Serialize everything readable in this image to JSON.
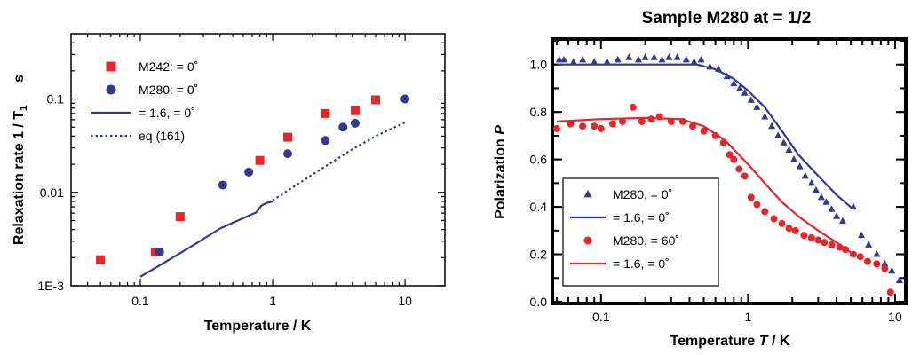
{
  "chart_data": [
    {
      "type": "scatter",
      "title": "",
      "xlabel": "Temperature / K",
      "ylabel": "Relaxation rate 1 / T₁   s",
      "ylabel_main": "Relaxation rate 1 / T",
      "ylabel_sub": "1",
      "ylabel_unit": "s",
      "x_scale": "log",
      "y_scale": "log",
      "xlim": [
        0.03,
        20
      ],
      "ylim": [
        0.001,
        0.5
      ],
      "x_ticks": [
        {
          "value": 0.1,
          "label": "0.1"
        },
        {
          "value": 1,
          "label": "1"
        },
        {
          "value": 10,
          "label": "10"
        }
      ],
      "y_ticks": [
        {
          "value": 0.001,
          "label": "1E-3"
        },
        {
          "value": 0.01,
          "label": "0.01"
        },
        {
          "value": 0.1,
          "label": "0.1"
        }
      ],
      "legend_position": "top-left",
      "series": [
        {
          "name": "M242:    = 0˚",
          "kind": "markers",
          "marker": "square",
          "color": "#e8262a",
          "points": [
            [
              0.05,
              0.0019
            ],
            [
              0.13,
              0.0023
            ],
            [
              0.2,
              0.0055
            ],
            [
              0.8,
              0.022
            ],
            [
              1.3,
              0.039
            ],
            [
              2.5,
              0.07
            ],
            [
              4.2,
              0.075
            ],
            [
              6,
              0.098
            ]
          ]
        },
        {
          "name": "M280:    = 0˚",
          "kind": "markers",
          "marker": "circle",
          "color": "#2e3a94",
          "points": [
            [
              0.14,
              0.0023
            ],
            [
              0.42,
              0.012
            ],
            [
              0.66,
              0.0165
            ],
            [
              1.3,
              0.026
            ],
            [
              2.5,
              0.036
            ],
            [
              3.4,
              0.05
            ],
            [
              4.2,
              0.055
            ],
            [
              10,
              0.1
            ]
          ]
        },
        {
          "name": "    = 1.6,    = 0˚",
          "kind": "line",
          "style": "solid",
          "color": "#2e3a94",
          "points": [
            [
              0.1,
              0.00125
            ],
            [
              0.15,
              0.00175
            ],
            [
              0.25,
              0.0027
            ],
            [
              0.4,
              0.0041
            ],
            [
              0.6,
              0.0053
            ],
            [
              0.75,
              0.0061
            ],
            [
              0.82,
              0.0072
            ],
            [
              0.9,
              0.0077
            ],
            [
              1,
              0.008
            ]
          ]
        },
        {
          "name": "eq (161)",
          "kind": "line",
          "style": "dotted",
          "color": "#2e3a94",
          "points": [
            [
              1,
              0.0082
            ],
            [
              2,
              0.0155
            ],
            [
              4,
              0.029
            ],
            [
              6,
              0.04
            ],
            [
              10,
              0.056
            ]
          ]
        }
      ]
    },
    {
      "type": "scatter",
      "title": "Sample M280 at    = 1/2",
      "xlabel": "Temperature T / K",
      "xlabel_plain": "Temperature ",
      "xlabel_var": "T",
      "xlabel_unit": " / K",
      "ylabel": "Polarization P",
      "ylabel_plain": "Polarization ",
      "ylabel_var": "P",
      "x_scale": "log",
      "y_scale": "linear",
      "xlim": [
        0.048,
        11.5
      ],
      "ylim": [
        0,
        1.1
      ],
      "x_ticks": [
        {
          "value": 0.1,
          "label": "0.1"
        },
        {
          "value": 1,
          "label": "1"
        },
        {
          "value": 10,
          "label": "10"
        }
      ],
      "y_ticks": [
        {
          "value": 0,
          "label": "0.0"
        },
        {
          "value": 0.2,
          "label": "0.2"
        },
        {
          "value": 0.4,
          "label": "0.4"
        },
        {
          "value": 0.6,
          "label": "0.6"
        },
        {
          "value": 0.8,
          "label": "0.8"
        },
        {
          "value": 1.0,
          "label": "1.0"
        }
      ],
      "legend_position": "bottom-left",
      "series": [
        {
          "name": "M280,    = 0˚",
          "kind": "markers",
          "marker": "triangle",
          "color": "#2e3a94",
          "points": [
            [
              0.052,
              1.02
            ],
            [
              0.056,
              1.02
            ],
            [
              0.065,
              1.01
            ],
            [
              0.075,
              1.02
            ],
            [
              0.09,
              1.01
            ],
            [
              0.11,
              1.01
            ],
            [
              0.13,
              1.02
            ],
            [
              0.155,
              1.03
            ],
            [
              0.18,
              1.02
            ],
            [
              0.2,
              1.03
            ],
            [
              0.23,
              1.03
            ],
            [
              0.26,
              1.02
            ],
            [
              0.29,
              1.03
            ],
            [
              0.33,
              1.03
            ],
            [
              0.38,
              1.02
            ],
            [
              0.43,
              1.01
            ],
            [
              0.48,
              1.02
            ],
            [
              0.55,
              0.99
            ],
            [
              0.63,
              0.98
            ],
            [
              0.72,
              0.95
            ],
            [
              0.8,
              0.92
            ],
            [
              0.88,
              0.9
            ],
            [
              0.95,
              0.88
            ],
            [
              1.05,
              0.85
            ],
            [
              1.15,
              0.82
            ],
            [
              1.3,
              0.78
            ],
            [
              1.45,
              0.74
            ],
            [
              1.6,
              0.7
            ],
            [
              1.75,
              0.67
            ],
            [
              1.9,
              0.64
            ],
            [
              2.05,
              0.6
            ],
            [
              2.25,
              0.57
            ],
            [
              2.45,
              0.53
            ],
            [
              2.7,
              0.5
            ],
            [
              2.9,
              0.47
            ],
            [
              3.15,
              0.44
            ],
            [
              3.4,
              0.42
            ],
            [
              3.7,
              0.39
            ],
            [
              4.0,
              0.36
            ],
            [
              4.4,
              0.34
            ],
            [
              5.2,
              0.4
            ],
            [
              5.9,
              0.28
            ],
            [
              6.6,
              0.24
            ],
            [
              7.5,
              0.2
            ],
            [
              8.5,
              0.16
            ],
            [
              9.5,
              0.13
            ],
            [
              10.7,
              0.09
            ]
          ]
        },
        {
          "name": "    = 1.6,    = 0˚",
          "kind": "line",
          "style": "solid",
          "color": "#2e3a94",
          "points": [
            [
              0.05,
              1.0
            ],
            [
              0.2,
              1.0
            ],
            [
              0.45,
              1.0
            ],
            [
              0.6,
              0.98
            ],
            [
              0.8,
              0.94
            ],
            [
              1.0,
              0.89
            ],
            [
              1.3,
              0.82
            ],
            [
              1.7,
              0.72
            ],
            [
              2.2,
              0.62
            ],
            [
              3.0,
              0.53
            ],
            [
              4.0,
              0.45
            ],
            [
              5.2,
              0.39
            ]
          ]
        },
        {
          "name": "M280,    = 60˚",
          "kind": "markers",
          "marker": "circle",
          "color": "#e8262a",
          "points": [
            [
              0.05,
              0.73
            ],
            [
              0.062,
              0.75
            ],
            [
              0.075,
              0.74
            ],
            [
              0.09,
              0.74
            ],
            [
              0.1,
              0.73
            ],
            [
              0.12,
              0.75
            ],
            [
              0.14,
              0.76
            ],
            [
              0.165,
              0.82
            ],
            [
              0.19,
              0.76
            ],
            [
              0.22,
              0.77
            ],
            [
              0.25,
              0.78
            ],
            [
              0.3,
              0.76
            ],
            [
              0.36,
              0.76
            ],
            [
              0.42,
              0.74
            ],
            [
              0.5,
              0.72
            ],
            [
              0.6,
              0.7
            ],
            [
              0.68,
              0.67
            ],
            [
              0.75,
              0.62
            ],
            [
              0.8,
              0.6
            ],
            [
              0.87,
              0.56
            ],
            [
              0.95,
              0.53
            ],
            [
              1.05,
              0.44
            ],
            [
              1.15,
              0.41
            ],
            [
              1.3,
              0.38
            ],
            [
              1.5,
              0.35
            ],
            [
              1.7,
              0.33
            ],
            [
              1.9,
              0.31
            ],
            [
              2.1,
              0.3
            ],
            [
              2.4,
              0.28
            ],
            [
              2.7,
              0.27
            ],
            [
              3.0,
              0.26
            ],
            [
              3.3,
              0.25
            ],
            [
              3.7,
              0.24
            ],
            [
              4.2,
              0.23
            ],
            [
              4.6,
              0.22
            ],
            [
              5.2,
              0.2
            ],
            [
              5.8,
              0.19
            ],
            [
              6.5,
              0.17
            ],
            [
              7.5,
              0.16
            ],
            [
              8.5,
              0.14
            ],
            [
              9.3,
              0.04
            ]
          ]
        },
        {
          "name": "    = 1.6,    = 0˚",
          "kind": "line",
          "style": "solid",
          "color": "#e8262a",
          "points": [
            [
              0.05,
              0.76
            ],
            [
              0.1,
              0.77
            ],
            [
              0.2,
              0.775
            ],
            [
              0.35,
              0.77
            ],
            [
              0.5,
              0.74
            ],
            [
              0.7,
              0.68
            ],
            [
              1.0,
              0.58
            ],
            [
              1.3,
              0.5
            ],
            [
              1.7,
              0.42
            ],
            [
              2.2,
              0.36
            ],
            [
              3.0,
              0.3
            ],
            [
              4.0,
              0.25
            ],
            [
              5.2,
              0.2
            ]
          ]
        }
      ]
    }
  ]
}
